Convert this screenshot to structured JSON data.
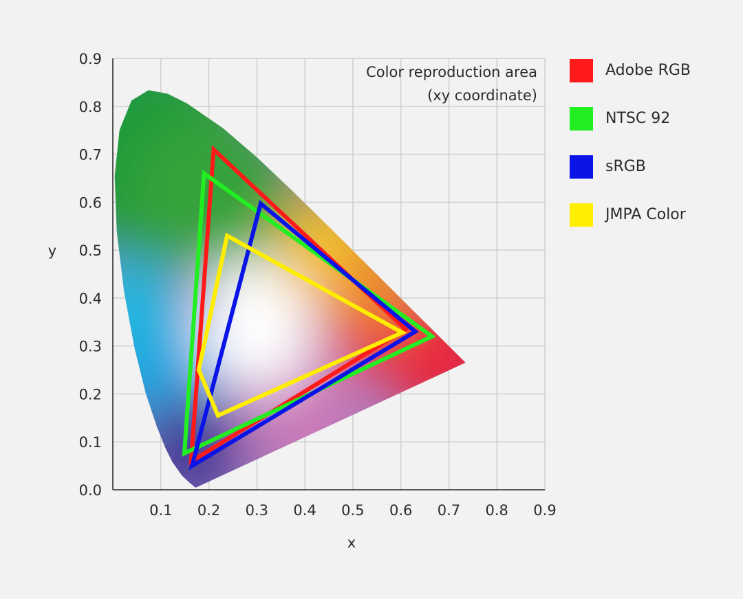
{
  "chart_data": {
    "type": "line",
    "title": "",
    "annotation": [
      "Color reproduction area",
      "(xy coordinate)"
    ],
    "xlabel": "x",
    "ylabel": "y",
    "xlim": [
      0,
      0.9
    ],
    "ylim": [
      0,
      0.9
    ],
    "grid": true,
    "legend_position": "right",
    "x_ticks": [
      "0.1",
      "0.2",
      "0.3",
      "0.4",
      "0.5",
      "0.6",
      "0.7",
      "0.8",
      "0.9"
    ],
    "y_ticks": [
      "0.0",
      "0.1",
      "0.2",
      "0.3",
      "0.4",
      "0.5",
      "0.6",
      "0.7",
      "0.8",
      "0.9"
    ],
    "spectral_locus": [
      [
        0.1741,
        0.005
      ],
      [
        0.1714,
        0.0051
      ],
      [
        0.1644,
        0.0109
      ],
      [
        0.1566,
        0.0177
      ],
      [
        0.144,
        0.0297
      ],
      [
        0.1241,
        0.0578
      ],
      [
        0.1096,
        0.0868
      ],
      [
        0.0913,
        0.1327
      ],
      [
        0.0687,
        0.2007
      ],
      [
        0.0454,
        0.295
      ],
      [
        0.0235,
        0.4127
      ],
      [
        0.0082,
        0.5384
      ],
      [
        0.0039,
        0.6548
      ],
      [
        0.0139,
        0.7502
      ],
      [
        0.0389,
        0.812
      ],
      [
        0.0743,
        0.8338
      ],
      [
        0.1142,
        0.8262
      ],
      [
        0.1547,
        0.8059
      ],
      [
        0.2296,
        0.7543
      ],
      [
        0.3016,
        0.6923
      ],
      [
        0.3731,
        0.6245
      ],
      [
        0.4441,
        0.5547
      ],
      [
        0.5125,
        0.4866
      ],
      [
        0.5752,
        0.4242
      ],
      [
        0.627,
        0.3725
      ],
      [
        0.6915,
        0.3083
      ],
      [
        0.719,
        0.2809
      ],
      [
        0.7347,
        0.2653
      ]
    ],
    "series": [
      {
        "name": "Adobe RGB",
        "color": "#ff1a1a",
        "points": [
          [
            0.21,
            0.71
          ],
          [
            0.61,
            0.335
          ],
          [
            0.163,
            0.059
          ]
        ]
      },
      {
        "name": "NTSC 92",
        "color": "#22ee22",
        "points": [
          [
            0.19,
            0.66
          ],
          [
            0.665,
            0.32
          ],
          [
            0.149,
            0.076
          ]
        ]
      },
      {
        "name": "sRGB",
        "color": "#0a14e6",
        "points": [
          [
            0.308,
            0.597
          ],
          [
            0.63,
            0.33
          ],
          [
            0.165,
            0.05
          ]
        ]
      },
      {
        "name": "JMPA Color",
        "color": "#ffee00",
        "points": [
          [
            0.238,
            0.53
          ],
          [
            0.603,
            0.328
          ],
          [
            0.219,
            0.155
          ],
          [
            0.179,
            0.25
          ]
        ]
      }
    ]
  }
}
